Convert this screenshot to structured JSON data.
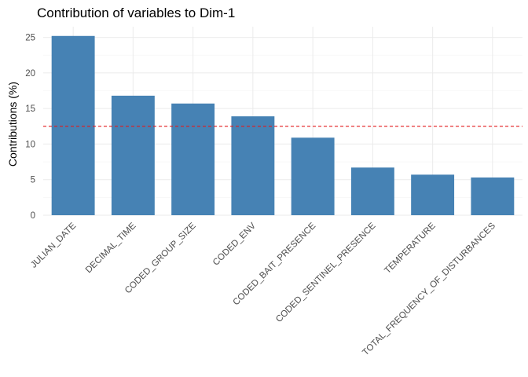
{
  "chart_data": {
    "type": "bar",
    "title": "Contribution of variables to Dim-1",
    "xlabel": "",
    "ylabel": "Contributions (%)",
    "categories": [
      "JULIAN_DATE",
      "DECIMAL_TIME",
      "CODED_GROUP_SIZE",
      "CODED_ENV",
      "CODED_BAIT_PRESENCE",
      "CODED_SENTINEL_PRESENCE",
      "TEMPERATURE",
      "TOTAL_FREQUENCY_OF_DISTURBANCES"
    ],
    "values": [
      25.2,
      16.8,
      15.7,
      13.9,
      10.9,
      6.7,
      5.7,
      5.3
    ],
    "reference_line": 12.5,
    "ylim": [
      0,
      26.5
    ],
    "yticks": [
      0,
      5,
      10,
      15,
      20,
      25
    ],
    "grid": true,
    "bar_color": "#4682B4",
    "reference_color": "#E41A1C"
  }
}
